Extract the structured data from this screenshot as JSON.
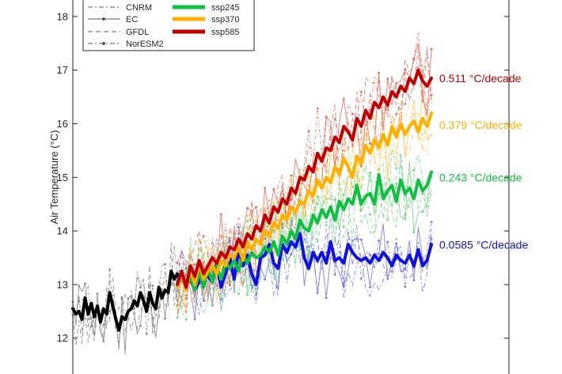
{
  "chart_data": {
    "type": "line",
    "ylabel": "Air Temperature (°C)",
    "xlabel": "",
    "ylim": [
      11.5,
      18.3
    ],
    "yticks": [
      "12",
      "13",
      "14",
      "15",
      "16",
      "17",
      "18"
    ],
    "colors": {
      "historical": "#000000",
      "ssp126": "#1010e0",
      "ssp245": "#10c040",
      "ssp370": "#ffb000",
      "ssp585": "#c00000"
    },
    "legend": {
      "placement": "top-left",
      "models": [
        {
          "name": "CNRM",
          "style": "dash-dot"
        },
        {
          "name": "EC",
          "style": "solid-dot-markers"
        },
        {
          "name": "GFDL",
          "style": "dashed"
        },
        {
          "name": "NorESM2",
          "style": "dash-dot-markers"
        }
      ],
      "scenarios": [
        {
          "name": "ssp245",
          "color_key": "ssp245"
        },
        {
          "name": "ssp370",
          "color_key": "ssp370"
        },
        {
          "name": "ssp585",
          "color_key": "ssp585"
        }
      ]
    },
    "annotations": [
      {
        "text": "0.511 °C/decade",
        "color_key": "ssp585",
        "y": 16.85
      },
      {
        "text": "0.379 °C/decade",
        "color_key": "ssp370",
        "y": 15.98
      },
      {
        "text": "0.243 °C/decade",
        "color_key": "ssp245",
        "y": 15.0
      },
      {
        "text": "0.0585 °C/decade",
        "color_key": "ssp126",
        "y": 13.74
      }
    ],
    "series": [
      {
        "key": "historical",
        "values": [
          12.55,
          12.45,
          12.5,
          12.35,
          12.75,
          12.45,
          12.65,
          12.4,
          12.6,
          12.3,
          12.55,
          12.45,
          12.85,
          12.6,
          12.35,
          12.15,
          12.4,
          12.35,
          12.5,
          12.55,
          12.7,
          12.6,
          12.85,
          12.7,
          12.5,
          12.85,
          12.65,
          12.55,
          12.95,
          12.75,
          12.9,
          12.85,
          13.25,
          13.1,
          13.2
        ]
      },
      {
        "key": "ssp126",
        "values": [
          13.15,
          13.2,
          13.0,
          13.1,
          12.9,
          13.05,
          13.2,
          13.15,
          13.05,
          13.4,
          12.95,
          13.2,
          13.5,
          13.1,
          13.65,
          13.35,
          13.55,
          13.2,
          13.0,
          13.5,
          13.55,
          13.75,
          13.4,
          13.3,
          13.75,
          13.6,
          13.8,
          13.7,
          13.95,
          13.5,
          13.3,
          13.6,
          13.45,
          13.6,
          13.4,
          13.8,
          13.45,
          13.5,
          13.4,
          13.75,
          13.6,
          13.5,
          13.45,
          13.5,
          13.4,
          13.55,
          13.45,
          13.6,
          13.5,
          13.35,
          13.55,
          13.45,
          13.4,
          13.55,
          13.35,
          13.65,
          13.35,
          13.45,
          13.75
        ]
      },
      {
        "key": "ssp245",
        "values": [
          13.05,
          13.1,
          12.95,
          13.15,
          12.9,
          13.25,
          12.95,
          13.3,
          13.05,
          13.35,
          13.1,
          13.4,
          13.3,
          13.45,
          13.25,
          13.55,
          13.4,
          13.6,
          13.5,
          13.55,
          13.7,
          13.6,
          13.8,
          13.55,
          13.9,
          13.75,
          14.0,
          13.85,
          14.2,
          14.05,
          14.0,
          14.3,
          14.15,
          14.4,
          14.25,
          14.45,
          14.2,
          14.55,
          14.4,
          14.6,
          14.5,
          14.85,
          14.5,
          14.65,
          14.7,
          14.5,
          15.05,
          14.6,
          14.75,
          14.85,
          14.55,
          14.95,
          14.7,
          14.8,
          14.6,
          14.95,
          14.75,
          14.85,
          15.1
        ]
      },
      {
        "key": "ssp370",
        "values": [
          12.95,
          13.2,
          12.9,
          13.3,
          13.0,
          13.4,
          13.1,
          13.25,
          13.35,
          13.2,
          13.45,
          13.35,
          13.55,
          13.5,
          13.7,
          13.45,
          13.8,
          13.65,
          13.85,
          13.75,
          14.0,
          13.9,
          14.15,
          14.05,
          14.3,
          14.2,
          14.45,
          14.35,
          14.55,
          14.5,
          14.75,
          14.65,
          14.95,
          14.8,
          15.0,
          14.9,
          15.2,
          15.05,
          15.35,
          15.2,
          15.0,
          15.4,
          15.25,
          15.6,
          15.45,
          15.7,
          15.55,
          15.8,
          15.6,
          15.95,
          15.75,
          16.0,
          15.8,
          15.95,
          16.05,
          15.85,
          16.1,
          15.95,
          16.2
        ]
      },
      {
        "key": "ssp585",
        "values": [
          13.0,
          13.25,
          12.95,
          13.35,
          13.15,
          13.45,
          13.2,
          13.35,
          13.5,
          13.4,
          13.6,
          13.5,
          13.7,
          13.65,
          13.85,
          13.7,
          13.95,
          13.85,
          14.1,
          14.0,
          14.3,
          14.15,
          14.45,
          14.35,
          14.6,
          14.5,
          14.8,
          14.7,
          15.0,
          14.95,
          15.2,
          15.1,
          15.45,
          15.3,
          15.55,
          15.5,
          15.75,
          15.65,
          15.95,
          15.85,
          15.7,
          16.1,
          15.95,
          16.25,
          16.1,
          16.4,
          16.3,
          16.5,
          16.35,
          16.6,
          16.5,
          16.7,
          16.6,
          16.85,
          16.75,
          17.0,
          16.8,
          16.7,
          16.85
        ]
      }
    ]
  }
}
